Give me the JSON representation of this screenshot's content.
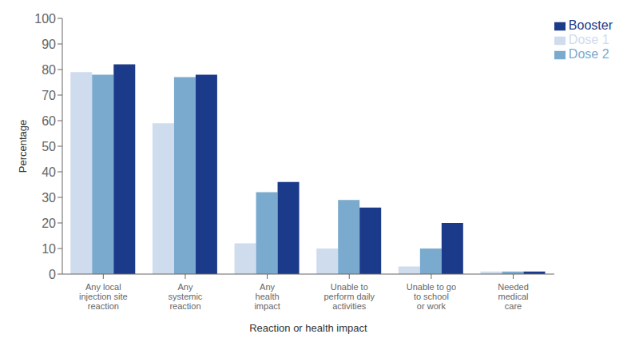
{
  "chart_data": {
    "type": "bar",
    "categories": [
      "Any local\ninjection site\nreaction",
      "Any\nsystemic\nreaction",
      "Any\nhealth\nimpact",
      "Unable to\nperform daily\nactivities",
      "Unable to go\nto school\nor work",
      "Needed\nmedical\ncare"
    ],
    "series": [
      {
        "name": "Dose 1",
        "color": "#cfdcee",
        "values": [
          79,
          59,
          12,
          10,
          3,
          1
        ]
      },
      {
        "name": "Dose 2",
        "color": "#7aaace",
        "values": [
          78,
          77,
          32,
          29,
          10,
          1
        ]
      },
      {
        "name": "Booster",
        "color": "#1c3a8a",
        "values": [
          82,
          78,
          36,
          26,
          20,
          1
        ]
      }
    ],
    "xlabel": "Reaction or health impact",
    "ylabel": "Percentage",
    "ylim": [
      0,
      100
    ],
    "yticks": [
      0,
      10,
      20,
      30,
      40,
      50,
      60,
      70,
      80,
      90,
      100
    ],
    "grid": false,
    "legend": "upper right"
  }
}
